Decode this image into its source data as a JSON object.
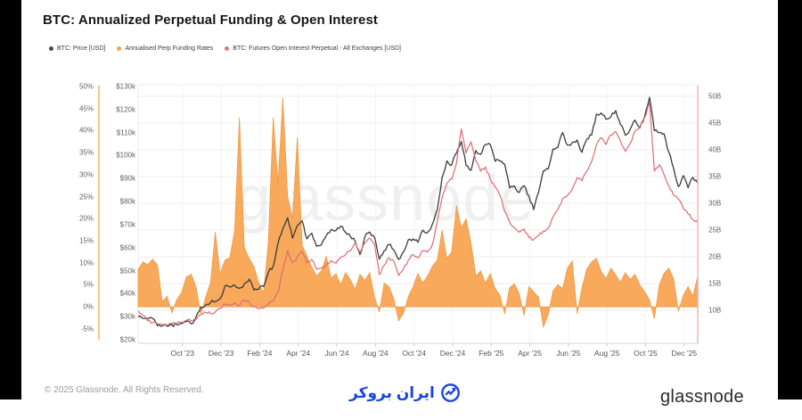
{
  "title": "BTC: Annualized Perpetual Funding & Open Interest",
  "watermark": "glassnode",
  "legend": {
    "items": [
      {
        "label": "BTC: Price [USD]",
        "color": "#4a4a4a"
      },
      {
        "label": "Annualised Perp Funding Rates",
        "color": "#F7A14B"
      },
      {
        "label": "BTC: Futures Open Interest Perpetual - All Exchanges [USD]",
        "color": "#E2787F"
      }
    ]
  },
  "footer": {
    "copyright": "© 2025 Glassnode. All Rights Reserved.",
    "partner_logo_text": "ایران بروکر",
    "partner_logo_color": "#1745E0",
    "brand_wordmark": "glassnode"
  },
  "chart_data": {
    "type": "line",
    "title": "BTC: Annualized Perpetual Funding & Open Interest",
    "x_unit": "months since 2023-07-22 (weekly samples, step 0.25 month)",
    "x_range_months": [
      0,
      29
    ],
    "x_tick_t": [
      2.3,
      4.3,
      6.3,
      8.3,
      10.3,
      12.3,
      14.3,
      16.3,
      18.3,
      20.3,
      22.3,
      24.3,
      26.3,
      28.3
    ],
    "x_tick_labels": [
      "Oct '23",
      "Dec '23",
      "Feb '24",
      "Apr '24",
      "Jun '24",
      "Aug '24",
      "Oct '24",
      "Dec '24",
      "Feb '25",
      "Apr '25",
      "Jun '25",
      "Aug '25",
      "Oct '25",
      "Dec '25"
    ],
    "grid": {
      "horizontal_follow_axis": "oi_billions",
      "color": "#ededed"
    },
    "y_axes": {
      "funding_pct": {
        "side": "left-outer",
        "axis_color": "#F7A14B",
        "min": -5,
        "max": 50,
        "tick_values": [
          50,
          45,
          40,
          35,
          30,
          25,
          20,
          15,
          10,
          5,
          0,
          -5
        ],
        "tick_labels": [
          "50%",
          "45%",
          "40%",
          "35%",
          "30%",
          "25%",
          "20%",
          "15%",
          "10%",
          "5%",
          "0%",
          "-5%"
        ]
      },
      "price_usd": {
        "side": "left-inner",
        "axis_color": "#e9e9e9",
        "min": 20,
        "max": 130,
        "tick_values": [
          130,
          120,
          110,
          100,
          90,
          80,
          70,
          60,
          50,
          40,
          30,
          20
        ],
        "tick_labels": [
          "$130k",
          "$120k",
          "$110k",
          "$100k",
          "$90k",
          "$80k",
          "$70k",
          "$60k",
          "$50k",
          "$40k",
          "$30k",
          "$20k"
        ]
      },
      "oi_billions": {
        "side": "right",
        "axis_color": "#EFA9AE",
        "min": 10,
        "max": 50,
        "tick_values": [
          50,
          45,
          40,
          35,
          30,
          25,
          20,
          15,
          10
        ],
        "tick_labels": [
          "50B",
          "45B",
          "40B",
          "35B",
          "30B",
          "25B",
          "20B",
          "15B",
          "10B"
        ]
      }
    },
    "series": [
      {
        "name": "Annualised Perp Funding Rates",
        "style": "area",
        "axis": "funding_pct",
        "unit": "%",
        "fill_color": "#F8A452",
        "stroke_color": "#F2963B",
        "values": [
          8.5,
          10.2,
          9.6,
          10.8,
          9.5,
          1.2,
          2.4,
          -1.4,
          1.6,
          3.2,
          6.8,
          7.4,
          4.5,
          -1.8,
          2.2,
          5.5,
          17.0,
          7.5,
          10.6,
          11.2,
          17.4,
          43.0,
          13.5,
          11.0,
          9.2,
          5.5,
          3.2,
          15.0,
          43.0,
          28.0,
          47.5,
          25.0,
          20.0,
          38.5,
          14.0,
          11.5,
          9.0,
          7.0,
          8.2,
          11.5,
          6.5,
          7.5,
          5.0,
          7.8,
          6.2,
          4.0,
          7.4,
          6.0,
          7.8,
          2.2,
          -1.2,
          5.4,
          4.6,
          1.8,
          -3.2,
          -1.5,
          2.4,
          4.6,
          7.6,
          5.4,
          7.0,
          9.2,
          10.6,
          17.4,
          11.0,
          12.5,
          23.0,
          18.0,
          20.0,
          14.5,
          7.0,
          8.2,
          5.4,
          7.6,
          4.2,
          2.6,
          -1.6,
          4.4,
          5.2,
          3.0,
          -2.0,
          4.6,
          3.4,
          2.2,
          -4.6,
          -1.8,
          3.6,
          5.0,
          4.2,
          8.8,
          10.4,
          -1.6,
          4.4,
          8.6,
          10.2,
          11.0,
          8.0,
          6.4,
          8.8,
          7.2,
          5.6,
          7.8,
          6.2,
          7.4,
          5.0,
          3.4,
          1.6,
          -2.7,
          4.8,
          7.6,
          8.8,
          6.4,
          -1.0,
          2.6,
          4.6,
          2.4,
          7.0
        ]
      },
      {
        "name": "BTC: Price [USD]",
        "style": "line",
        "axis": "price_usd",
        "unit": "USD thousands",
        "stroke_color": "#3B3B3B",
        "values": [
          29.8,
          29.3,
          29.1,
          29.2,
          26.1,
          26.0,
          25.9,
          26.5,
          26.6,
          27.1,
          27.9,
          26.9,
          30.0,
          34.2,
          35.1,
          36.2,
          36.6,
          37.8,
          43.3,
          42.9,
          43.7,
          42.3,
          44.2,
          46.3,
          41.6,
          42.0,
          43.1,
          49.3,
          51.8,
          62.0,
          68.3,
          73.0,
          64.1,
          69.6,
          71.6,
          63.8,
          66.3,
          60.6,
          61.2,
          65.2,
          67.9,
          67.5,
          69.3,
          66.6,
          64.9,
          62.8,
          57.0,
          64.7,
          66.8,
          64.6,
          55.0,
          58.7,
          61.4,
          59.1,
          54.9,
          58.2,
          63.4,
          63.8,
          62.3,
          67.6,
          66.6,
          70.2,
          76.5,
          90.5,
          97.7,
          95.9,
          101.2,
          106.1,
          95.7,
          93.6,
          102.2,
          100.5,
          104.8,
          104.7,
          97.5,
          97.6,
          96.2,
          86.0,
          86.8,
          84.0,
          86.9,
          82.5,
          76.5,
          84.0,
          93.4,
          94.2,
          102.9,
          103.5,
          110.0,
          104.6,
          105.7,
          106.8,
          101.4,
          107.2,
          108.9,
          118.0,
          118.5,
          115.8,
          116.9,
          119.5,
          113.4,
          108.8,
          111.5,
          115.4,
          112.0,
          117.0,
          125.3,
          110.8,
          110.0,
          109.5,
          101.5,
          94.5,
          86.5,
          91.3,
          86.0,
          90.5,
          88.0
        ]
      },
      {
        "name": "BTC: Futures Open Interest Perpetual - All Exchanges [USD]",
        "style": "line",
        "axis": "oi_billions",
        "unit": "USD billions",
        "stroke_color": "#DC6B74",
        "values": [
          9.9,
          9.0,
          8.0,
          7.7,
          7.5,
          7.4,
          7.3,
          7.5,
          7.6,
          7.8,
          8.1,
          8.0,
          8.3,
          9.2,
          9.6,
          9.4,
          9.7,
          10.3,
          11.2,
          10.9,
          11.4,
          10.8,
          11.9,
          11.6,
          10.6,
          10.3,
          10.4,
          11.2,
          11.7,
          13.3,
          17.5,
          21.2,
          18.9,
          20.0,
          21.0,
          18.9,
          19.5,
          17.7,
          17.9,
          18.4,
          19.3,
          18.8,
          19.9,
          20.4,
          21.1,
          22.7,
          20.8,
          22.6,
          23.5,
          22.4,
          16.7,
          18.4,
          19.8,
          19.2,
          16.5,
          17.8,
          19.4,
          20.4,
          19.8,
          21.2,
          20.9,
          22.3,
          26.5,
          31.0,
          33.8,
          34.5,
          37.5,
          43.9,
          39.4,
          41.5,
          38.0,
          36.0,
          36.8,
          34.5,
          33.0,
          31.5,
          28.5,
          26.5,
          25.4,
          24.6,
          25.2,
          23.6,
          23.2,
          23.9,
          24.8,
          25.3,
          27.5,
          28.8,
          30.8,
          31.5,
          32.6,
          34.8,
          34.2,
          36.0,
          37.8,
          41.0,
          42.3,
          41.0,
          42.8,
          43.4,
          41.6,
          39.7,
          41.2,
          43.5,
          44.3,
          46.0,
          48.8,
          36.0,
          37.2,
          35.4,
          33.3,
          31.5,
          30.8,
          29.0,
          28.0,
          27.0,
          26.5
        ]
      }
    ]
  }
}
